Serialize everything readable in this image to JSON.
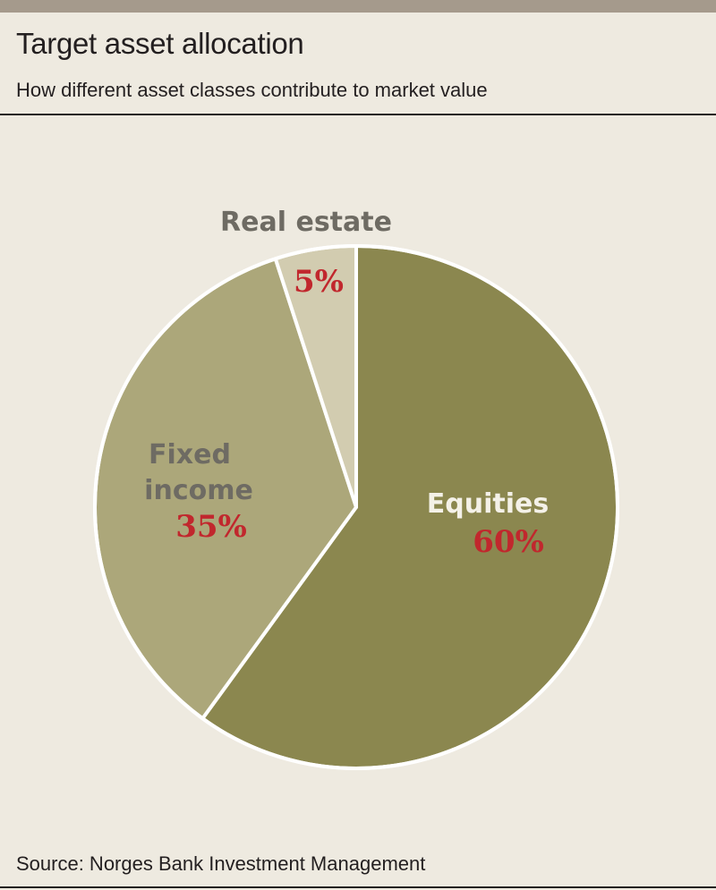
{
  "header": {
    "title": "Target asset allocation",
    "subtitle": "How different asset classes contribute to market value"
  },
  "footer": {
    "source": "Source: Norges Bank Investment Management"
  },
  "colors": {
    "background": "#eeeae0",
    "top_bar": "#a59a8c",
    "value_label": "#c1272d",
    "category_label_light": "#f4f1e8",
    "category_label_dark": "#6e6b63"
  },
  "chart_data": {
    "type": "pie",
    "title": "Target asset allocation",
    "subtitle": "How different asset classes contribute to market value",
    "start": "12 o'clock",
    "direction": "clockwise",
    "slices": [
      {
        "label": "Equities",
        "value": 60,
        "value_label": "60%",
        "color": "#8b874f"
      },
      {
        "label": "Fixed income",
        "label_lines": [
          "Fixed",
          "income"
        ],
        "value": 35,
        "value_label": "35%",
        "color": "#aca77a"
      },
      {
        "label": "Real estate",
        "value": 5,
        "value_label": "5%",
        "color": "#d2ccb0"
      }
    ]
  }
}
